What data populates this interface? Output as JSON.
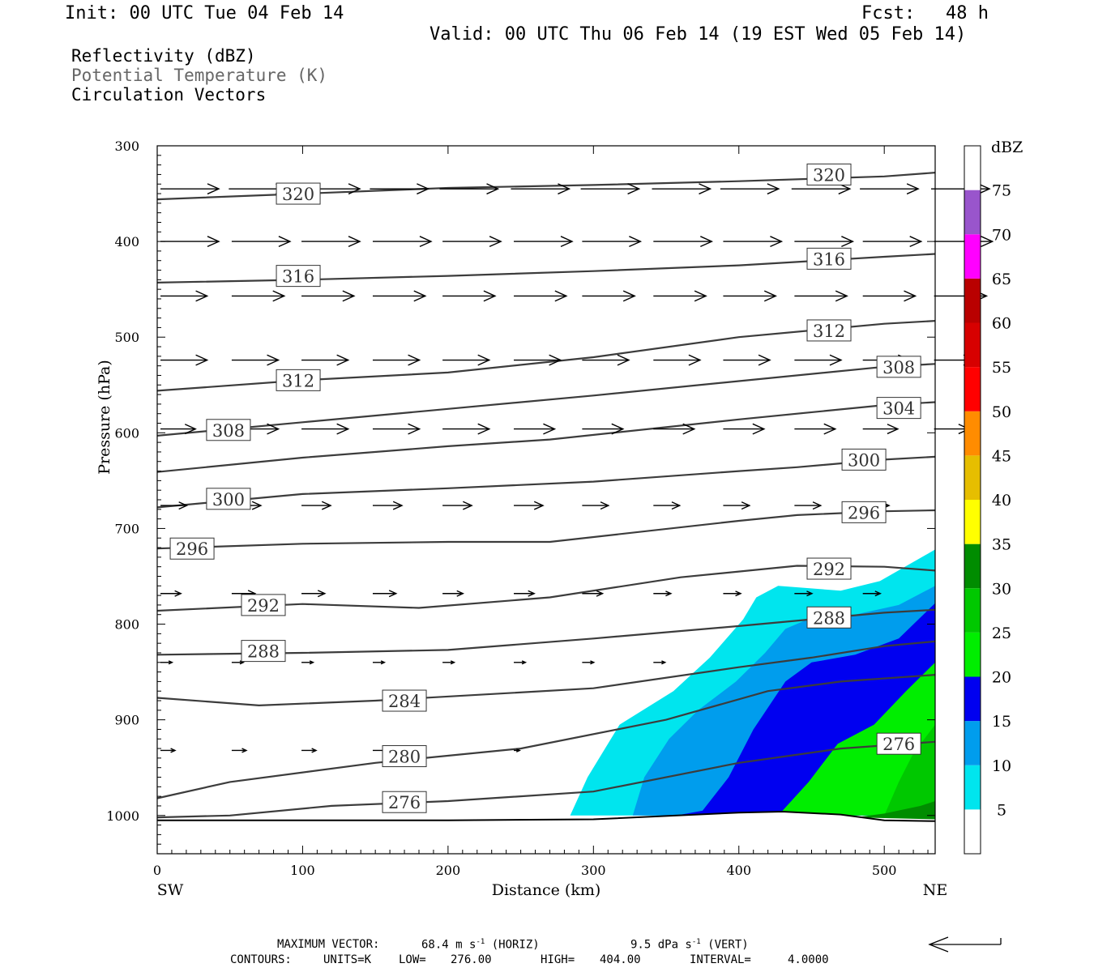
{
  "header": {
    "init": "Init: 00 UTC Tue 04 Feb 14",
    "fcst_label": "Fcst:",
    "fcst_value": "48 h",
    "valid": "Valid: 00 UTC Thu 06 Feb 14 (19 EST Wed 05 Feb 14)"
  },
  "fields": {
    "reflectivity": "Reflectivity (dBZ)",
    "potential_temperature": "Potential Temperature (K)",
    "circulation": "Circulation Vectors"
  },
  "footer": {
    "max_vector_label": "MAXIMUM VECTOR:",
    "horiz_value": "68.4 m s",
    "horiz_exp": "-1",
    "horiz_unit": "(HORIZ)",
    "vert_value": "9.5 dPa s",
    "vert_exp": "-1",
    "vert_unit": "(VERT)",
    "contours_label": "CONTOURS:",
    "units": "UNITS=K",
    "low_label": "LOW=",
    "low_value": "276.00",
    "high_label": "HIGH=",
    "high_value": "404.00",
    "interval_label": "INTERVAL=",
    "interval_value": "4.0000"
  },
  "colors": {
    "contour": "#3c3c3c",
    "vector": "#000000",
    "axis": "#000000"
  },
  "chart_data": {
    "type": "heatmap",
    "xlabel": "Distance (km)",
    "ylabel": "Pressure (hPa)",
    "xlim": [
      0,
      535
    ],
    "ylim": [
      300,
      1040
    ],
    "x_ticks": [
      0,
      100,
      200,
      300,
      400,
      500
    ],
    "y_ticks": [
      300,
      400,
      500,
      600,
      700,
      800,
      900,
      1000
    ],
    "x_end_labels": {
      "left": "SW",
      "right": "NE"
    },
    "colorbar": {
      "title": "dBZ",
      "levels": [
        5,
        10,
        15,
        20,
        25,
        30,
        35,
        40,
        45,
        50,
        55,
        60,
        65,
        70,
        75
      ],
      "colors": [
        "#ffffff",
        "#00e5ee",
        "#009ded",
        "#0000f0",
        "#00ee00",
        "#00c800",
        "#008c00",
        "#ffff00",
        "#e6be00",
        "#ff8c00",
        "#ff0000",
        "#d70000",
        "#b90000",
        "#ff00ff",
        "#9955cc",
        "#ffffff"
      ]
    },
    "reflectivity_regions": [
      {
        "min_dbz": 5,
        "color": "#00e5ee",
        "points": [
          [
            284,
            1000
          ],
          [
            296,
            960
          ],
          [
            318,
            905
          ],
          [
            355,
            870
          ],
          [
            380,
            835
          ],
          [
            403,
            795
          ],
          [
            412,
            772
          ],
          [
            427,
            760
          ],
          [
            470,
            765
          ],
          [
            497,
            755
          ],
          [
            535,
            722
          ],
          [
            535,
            1000
          ]
        ]
      },
      {
        "min_dbz": 10,
        "color": "#009ded",
        "points": [
          [
            327,
            1000
          ],
          [
            335,
            960
          ],
          [
            352,
            920
          ],
          [
            372,
            890
          ],
          [
            398,
            860
          ],
          [
            418,
            830
          ],
          [
            432,
            805
          ],
          [
            455,
            790
          ],
          [
            480,
            790
          ],
          [
            510,
            780
          ],
          [
            535,
            760
          ],
          [
            535,
            1000
          ]
        ]
      },
      {
        "min_dbz": 15,
        "color": "#0000f0",
        "points": [
          [
            357,
            1000
          ],
          [
            375,
            995
          ],
          [
            393,
            960
          ],
          [
            410,
            910
          ],
          [
            432,
            860
          ],
          [
            450,
            840
          ],
          [
            480,
            832
          ],
          [
            510,
            815
          ],
          [
            535,
            778
          ],
          [
            535,
            1000
          ]
        ]
      },
      {
        "min_dbz": 20,
        "color": "#00ee00",
        "points": [
          [
            393,
            1000
          ],
          [
            430,
            995
          ],
          [
            448,
            965
          ],
          [
            468,
            925
          ],
          [
            493,
            905
          ],
          [
            515,
            870
          ],
          [
            535,
            840
          ],
          [
            535,
            1000
          ]
        ]
      },
      {
        "min_dbz": 25,
        "color": "#00c800",
        "points": [
          [
            450,
            1000
          ],
          [
            500,
            1000
          ],
          [
            510,
            965
          ],
          [
            520,
            935
          ],
          [
            535,
            905
          ],
          [
            535,
            1000
          ]
        ]
      },
      {
        "min_dbz": 30,
        "color": "#008c00",
        "points": [
          [
            480,
            1002
          ],
          [
            500,
            998
          ],
          [
            525,
            990
          ],
          [
            535,
            985
          ],
          [
            535,
            1004
          ]
        ]
      }
    ],
    "terrain_pressure": [
      [
        0,
        1005
      ],
      [
        100,
        1005
      ],
      [
        200,
        1005
      ],
      [
        300,
        1004
      ],
      [
        400,
        997
      ],
      [
        430,
        996
      ],
      [
        470,
        999
      ],
      [
        500,
        1005
      ],
      [
        535,
        1006
      ]
    ],
    "theta_contours": [
      {
        "level": 320,
        "points": [
          [
            0,
            356
          ],
          [
            100,
            350
          ],
          [
            200,
            344
          ],
          [
            300,
            341
          ],
          [
            400,
            337
          ],
          [
            500,
            332
          ],
          [
            535,
            328
          ]
        ],
        "labels": [
          [
            97,
            350
          ],
          [
            462,
            330
          ]
        ]
      },
      {
        "level": 316,
        "points": [
          [
            0,
            443
          ],
          [
            100,
            440
          ],
          [
            200,
            436
          ],
          [
            300,
            431
          ],
          [
            400,
            425
          ],
          [
            500,
            416
          ],
          [
            535,
            413
          ]
        ],
        "labels": [
          [
            97,
            436
          ],
          [
            462,
            418
          ]
        ]
      },
      {
        "level": 312,
        "points": [
          [
            0,
            556
          ],
          [
            100,
            545
          ],
          [
            200,
            537
          ],
          [
            300,
            521
          ],
          [
            400,
            500
          ],
          [
            500,
            486
          ],
          [
            535,
            483
          ]
        ],
        "labels": [
          [
            97,
            545
          ],
          [
            462,
            493
          ]
        ]
      },
      {
        "level": 308,
        "points": [
          [
            0,
            603
          ],
          [
            100,
            589
          ],
          [
            200,
            575
          ],
          [
            300,
            561
          ],
          [
            400,
            546
          ],
          [
            500,
            531
          ],
          [
            535,
            528
          ]
        ],
        "labels": [
          [
            49,
            597
          ],
          [
            510,
            531
          ]
        ]
      },
      {
        "level": 304,
        "points": [
          [
            0,
            641
          ],
          [
            100,
            626
          ],
          [
            200,
            614
          ],
          [
            270,
            607
          ],
          [
            400,
            586
          ],
          [
            500,
            571
          ],
          [
            535,
            568
          ]
        ],
        "labels": [
          [
            510,
            574
          ]
        ]
      },
      {
        "level": 300,
        "points": [
          [
            0,
            678
          ],
          [
            100,
            664
          ],
          [
            200,
            658
          ],
          [
            300,
            651
          ],
          [
            400,
            640
          ],
          [
            440,
            636
          ],
          [
            500,
            628
          ],
          [
            535,
            625
          ]
        ],
        "labels": [
          [
            49,
            669
          ],
          [
            486,
            628
          ]
        ]
      },
      {
        "level": 296,
        "points": [
          [
            0,
            721
          ],
          [
            100,
            716
          ],
          [
            200,
            714
          ],
          [
            270,
            714
          ],
          [
            400,
            692
          ],
          [
            440,
            686
          ],
          [
            500,
            682
          ],
          [
            535,
            681
          ]
        ],
        "labels": [
          [
            24,
            721
          ],
          [
            486,
            683
          ]
        ]
      },
      {
        "level": 292,
        "points": [
          [
            0,
            786
          ],
          [
            100,
            779
          ],
          [
            180,
            783
          ],
          [
            270,
            772
          ],
          [
            360,
            751
          ],
          [
            440,
            739
          ],
          [
            500,
            740
          ],
          [
            535,
            744
          ]
        ],
        "labels": [
          [
            73,
            780
          ],
          [
            462,
            742
          ]
        ]
      },
      {
        "level": 288,
        "points": [
          [
            0,
            832
          ],
          [
            100,
            830
          ],
          [
            200,
            827
          ],
          [
            300,
            815
          ],
          [
            400,
            802
          ],
          [
            450,
            795
          ],
          [
            500,
            788
          ],
          [
            535,
            785
          ]
        ],
        "labels": [
          [
            73,
            828
          ],
          [
            462,
            793
          ]
        ]
      },
      {
        "level": 284,
        "points": [
          [
            0,
            877
          ],
          [
            70,
            885
          ],
          [
            150,
            880
          ],
          [
            300,
            867
          ],
          [
            400,
            845
          ],
          [
            450,
            835
          ],
          [
            500,
            823
          ],
          [
            535,
            818
          ]
        ],
        "labels": [
          [
            170,
            880
          ]
        ]
      },
      {
        "level": 280,
        "points": [
          [
            0,
            982
          ],
          [
            50,
            965
          ],
          [
            150,
            945
          ],
          [
            250,
            930
          ],
          [
            350,
            900
          ],
          [
            420,
            870
          ],
          [
            470,
            860
          ],
          [
            535,
            853
          ]
        ],
        "labels": [
          [
            170,
            938
          ]
        ]
      },
      {
        "level": 276,
        "points": [
          [
            0,
            1002
          ],
          [
            50,
            1000
          ],
          [
            120,
            990
          ],
          [
            200,
            985
          ],
          [
            300,
            975
          ],
          [
            400,
            945
          ],
          [
            470,
            930
          ],
          [
            535,
            923
          ]
        ],
        "labels": [
          [
            170,
            986
          ],
          [
            510,
            925
          ]
        ]
      }
    ],
    "vector_rows": [
      {
        "p": 345,
        "u": [
          [
            0,
            1
          ],
          [
            47,
            1
          ],
          [
            97,
            1
          ],
          [
            144,
            1
          ],
          [
            192,
            1
          ],
          [
            241,
            1
          ],
          [
            289,
            1
          ],
          [
            338,
            1
          ],
          [
            385,
            1
          ],
          [
            434,
            1
          ],
          [
            481,
            1
          ],
          [
            530,
            1
          ]
        ]
      },
      {
        "p": 400,
        "u": [
          [
            0,
            1
          ],
          [
            49,
            1
          ],
          [
            97,
            1
          ],
          [
            146,
            1
          ],
          [
            194,
            1
          ],
          [
            243,
            1
          ],
          [
            290,
            1
          ],
          [
            339,
            1
          ],
          [
            387,
            1
          ],
          [
            436,
            1
          ],
          [
            483,
            1
          ],
          [
            532,
            1
          ]
        ]
      },
      {
        "p": 457,
        "u": [
          [
            0,
            0.8
          ],
          [
            49,
            0.9
          ],
          [
            97,
            0.9
          ],
          [
            146,
            0.9
          ],
          [
            194,
            0.9
          ],
          [
            243,
            0.9
          ],
          [
            290,
            0.9
          ],
          [
            339,
            0.9
          ],
          [
            387,
            0.9
          ],
          [
            436,
            0.9
          ],
          [
            483,
            0.9
          ],
          [
            532,
            0.9
          ]
        ]
      },
      {
        "p": 524,
        "u": [
          [
            0,
            0.8
          ],
          [
            49,
            0.8
          ],
          [
            97,
            0.8
          ],
          [
            146,
            0.8
          ],
          [
            194,
            0.8
          ],
          [
            243,
            0.8
          ],
          [
            290,
            0.8
          ],
          [
            339,
            0.8
          ],
          [
            387,
            0.8
          ],
          [
            436,
            0.8
          ],
          [
            483,
            0.8
          ],
          [
            532,
            0.7
          ]
        ]
      },
      {
        "p": 596,
        "u": [
          [
            0,
            0.6
          ],
          [
            49,
            0.8
          ],
          [
            97,
            0.8
          ],
          [
            146,
            0.8
          ],
          [
            194,
            0.8
          ],
          [
            243,
            0.7
          ],
          [
            290,
            0.7
          ],
          [
            339,
            0.7
          ],
          [
            387,
            0.7
          ],
          [
            436,
            0.7
          ],
          [
            483,
            0.6
          ],
          [
            532,
            0.6
          ]
        ]
      },
      {
        "p": 676,
        "u": [
          [
            0,
            0.45
          ],
          [
            49,
            0.5
          ],
          [
            97,
            0.5
          ],
          [
            146,
            0.5
          ],
          [
            194,
            0.5
          ],
          [
            243,
            0.5
          ],
          [
            290,
            0.45
          ],
          [
            339,
            0.45
          ],
          [
            387,
            0.45
          ],
          [
            436,
            0.45
          ],
          [
            483,
            0.45
          ]
        ]
      },
      {
        "p": 768,
        "u": [
          [
            0,
            0.35
          ],
          [
            49,
            0.4
          ],
          [
            97,
            0.4
          ],
          [
            146,
            0.4
          ],
          [
            194,
            0.35
          ],
          [
            243,
            0.35
          ],
          [
            290,
            0.35
          ],
          [
            339,
            0.3
          ],
          [
            387,
            0.3
          ],
          [
            436,
            0.3
          ],
          [
            483,
            0.3
          ]
        ]
      },
      {
        "p": 840,
        "u": [
          [
            0,
            0.2
          ],
          [
            49,
            0.2
          ],
          [
            97,
            0.2
          ],
          [
            146,
            0.2
          ],
          [
            194,
            0.2
          ],
          [
            243,
            0.2
          ],
          [
            290,
            0.2
          ],
          [
            339,
            0.2
          ]
        ]
      },
      {
        "p": 932,
        "u": [
          [
            0,
            0.25
          ],
          [
            49,
            0.25
          ],
          [
            97,
            0.25
          ],
          [
            146,
            0.25
          ],
          [
            243,
            0.1
          ]
        ]
      }
    ]
  }
}
